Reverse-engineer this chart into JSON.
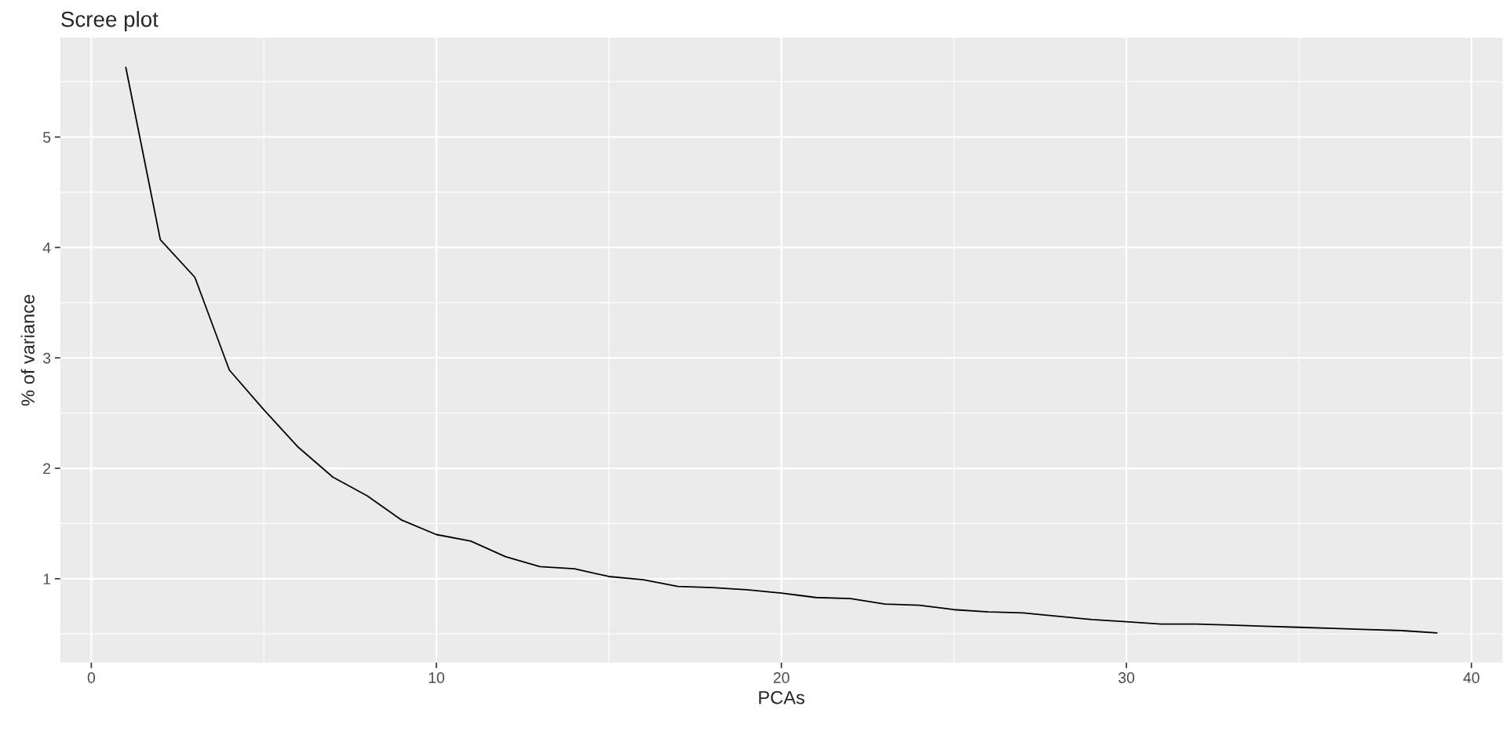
{
  "chart_data": {
    "type": "line",
    "title": "Scree plot",
    "xlabel": "PCAs",
    "ylabel": "% of variance",
    "x": [
      1,
      2,
      3,
      4,
      5,
      6,
      7,
      8,
      9,
      10,
      11,
      12,
      13,
      14,
      15,
      16,
      17,
      18,
      19,
      20,
      21,
      22,
      23,
      24,
      25,
      26,
      27,
      28,
      29,
      30,
      31,
      32,
      33,
      34,
      35,
      36,
      37,
      38,
      39
    ],
    "series": [
      {
        "color": "#000000",
        "values": [
          5.63,
          4.07,
          3.73,
          2.89,
          2.53,
          2.19,
          1.92,
          1.75,
          1.53,
          1.4,
          1.34,
          1.2,
          1.11,
          1.09,
          1.02,
          0.99,
          0.93,
          0.92,
          0.9,
          0.87,
          0.83,
          0.82,
          0.77,
          0.76,
          0.72,
          0.7,
          0.69,
          0.66,
          0.63,
          0.61,
          0.59,
          0.59,
          0.58,
          0.57,
          0.56,
          0.55,
          0.54,
          0.53,
          0.51
        ]
      }
    ],
    "xlim": [
      -0.9,
      40.9
    ],
    "ylim": [
      0.24,
      5.9
    ],
    "xticks": [
      0,
      10,
      20,
      30,
      40
    ],
    "yticks": [
      1,
      2,
      3,
      4,
      5
    ],
    "grid": true
  }
}
